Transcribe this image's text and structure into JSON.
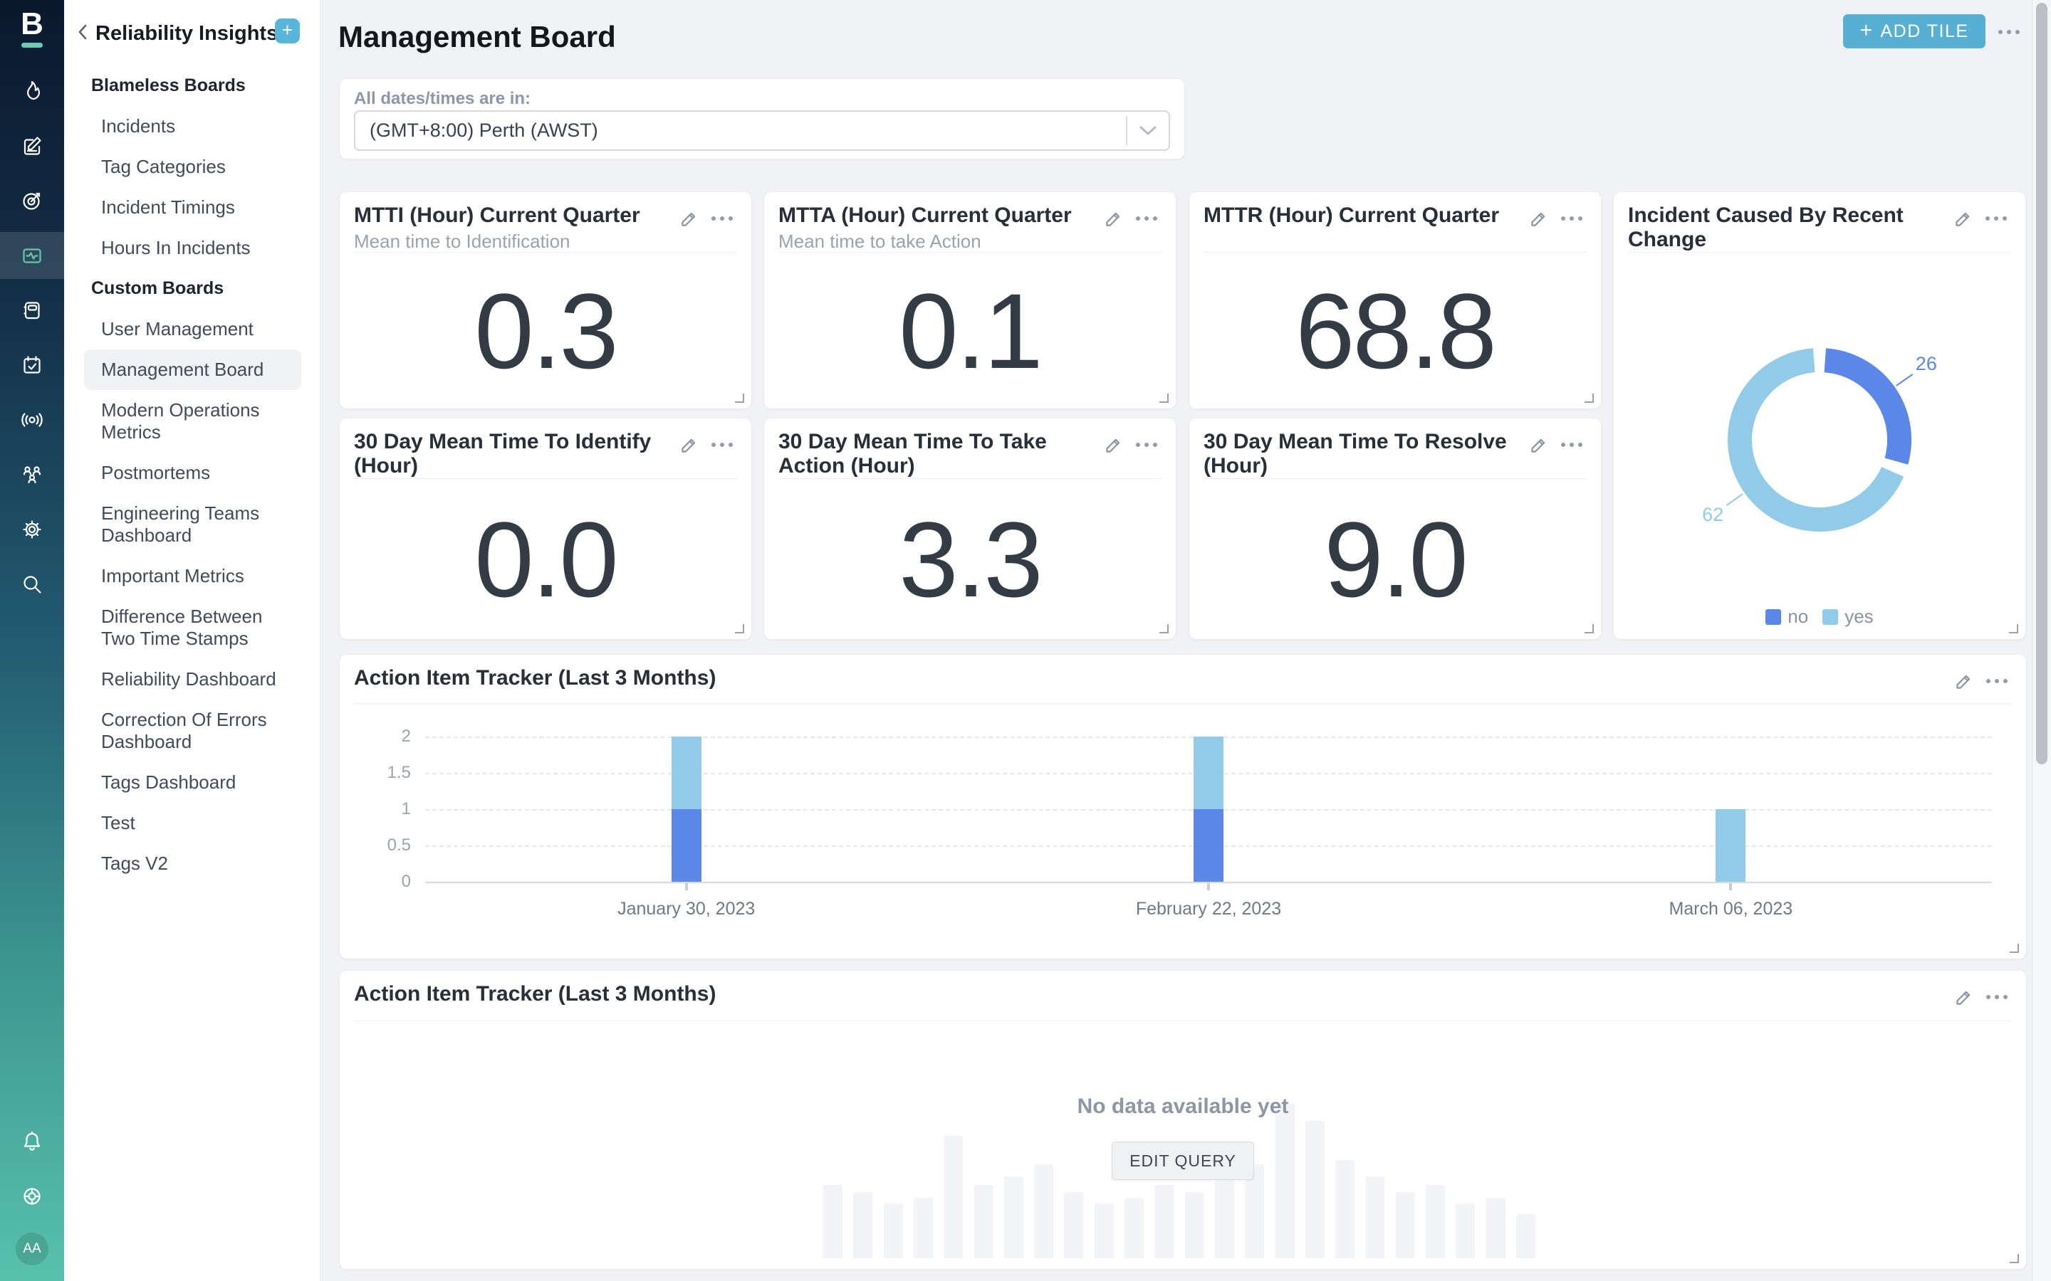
{
  "colors": {
    "accent": "#57AFD4",
    "sidebar_add": "#5AB5DA",
    "bar_blue": "#5B87E8",
    "bar_light": "#92CBE8"
  },
  "brand": {
    "logo_letter": "B"
  },
  "rail": {
    "items": [
      {
        "name": "incidents-flame",
        "icon": "flame",
        "active": false
      },
      {
        "name": "postmortems-compose",
        "icon": "compose",
        "active": false
      },
      {
        "name": "objectives-target",
        "icon": "target",
        "active": false
      },
      {
        "name": "insights-monitor",
        "icon": "monitor",
        "active": true
      },
      {
        "name": "runbooks-book",
        "icon": "book",
        "active": false
      },
      {
        "name": "schedule-calendar",
        "icon": "calendar",
        "active": false
      },
      {
        "name": "comms-broadcast",
        "icon": "broadcast",
        "active": false
      },
      {
        "name": "teams-people",
        "icon": "team",
        "active": false
      },
      {
        "name": "settings-gear",
        "icon": "gear",
        "active": false
      },
      {
        "name": "search",
        "icon": "search",
        "active": false
      }
    ],
    "bottom": [
      {
        "name": "notifications-bell",
        "icon": "bell"
      },
      {
        "name": "help-lifebuoy",
        "icon": "lifebuoy"
      }
    ],
    "avatar": "AA"
  },
  "sidebar": {
    "title": "Reliability Insights",
    "sections": [
      {
        "label": "Blameless Boards",
        "items": [
          {
            "label": "Incidents",
            "active": false
          },
          {
            "label": "Tag Categories",
            "active": false
          },
          {
            "label": "Incident Timings",
            "active": false
          },
          {
            "label": "Hours In Incidents",
            "active": false
          }
        ]
      },
      {
        "label": "Custom Boards",
        "items": [
          {
            "label": "User Management",
            "active": false
          },
          {
            "label": "Management Board",
            "active": true
          },
          {
            "label": "Modern Operations Metrics",
            "active": false
          },
          {
            "label": "Postmortems",
            "active": false
          },
          {
            "label": "Engineering Teams Dashboard",
            "active": false
          },
          {
            "label": "Important Metrics",
            "active": false
          },
          {
            "label": "Difference Between Two Time Stamps",
            "active": false
          },
          {
            "label": "Reliability Dashboard",
            "active": false
          },
          {
            "label": "Correction Of Errors Dashboard",
            "active": false
          },
          {
            "label": "Tags Dashboard",
            "active": false
          },
          {
            "label": "Test",
            "active": false
          },
          {
            "label": "Tags V2",
            "active": false
          }
        ]
      }
    ]
  },
  "header": {
    "title": "Management Board",
    "add_tile_label": "ADD TILE",
    "add_tile_plus": "+"
  },
  "timezone": {
    "label": "All dates/times are in:",
    "value": "(GMT+8:00) Perth (AWST)"
  },
  "tiles": [
    {
      "title": "MTTI (Hour) Current Quarter",
      "subtitle": "Mean time to Identification",
      "value": "0.3"
    },
    {
      "title": "MTTA (Hour) Current Quarter",
      "subtitle": "Mean time to take Action",
      "value": "0.1"
    },
    {
      "title": "MTTR (Hour) Current Quarter",
      "subtitle": "",
      "value": "68.8"
    },
    {
      "title": "30 Day Mean Time To Identify (Hour)",
      "subtitle": "",
      "value": "0.0"
    },
    {
      "title": "30 Day Mean Time To Take Action (Hour)",
      "subtitle": "",
      "value": "3.3"
    },
    {
      "title": "30 Day Mean Time To Resolve (Hour)",
      "subtitle": "",
      "value": "9.0"
    }
  ],
  "chart_data": [
    {
      "type": "pie",
      "subtype": "donut",
      "title": "Incident Caused By Recent Change",
      "labels": [
        "no",
        "yes"
      ],
      "values": [
        26,
        62
      ],
      "colors": [
        "#5B87E8",
        "#92CBE8"
      ],
      "legend_position": "bottom"
    },
    {
      "type": "bar",
      "stacked": true,
      "title": "Action Item Tracker (Last 3 Months)",
      "categories": [
        "January 30, 2023",
        "February 22, 2023",
        "March 06, 2023"
      ],
      "series": [
        {
          "name": "series-1",
          "color": "#5B87E8",
          "values": [
            1,
            1,
            0
          ]
        },
        {
          "name": "series-2",
          "color": "#92CBE8",
          "values": [
            1,
            1,
            1
          ]
        }
      ],
      "ylim": [
        0,
        2
      ],
      "yticks": [
        2,
        1.5,
        1,
        0.5,
        0
      ],
      "grid": true,
      "legend_position": "none"
    },
    {
      "type": "bar",
      "title": "Action Item Tracker (Last 3 Months)",
      "empty": true,
      "empty_message": "No data available yet",
      "action_label": "EDIT QUERY",
      "placeholder_bar_heights": [
        103,
        93,
        77,
        85,
        172,
        103,
        115,
        132,
        93,
        77,
        85,
        103,
        93,
        115,
        132,
        218,
        193,
        138,
        115,
        93,
        103,
        77,
        85,
        62
      ]
    }
  ]
}
